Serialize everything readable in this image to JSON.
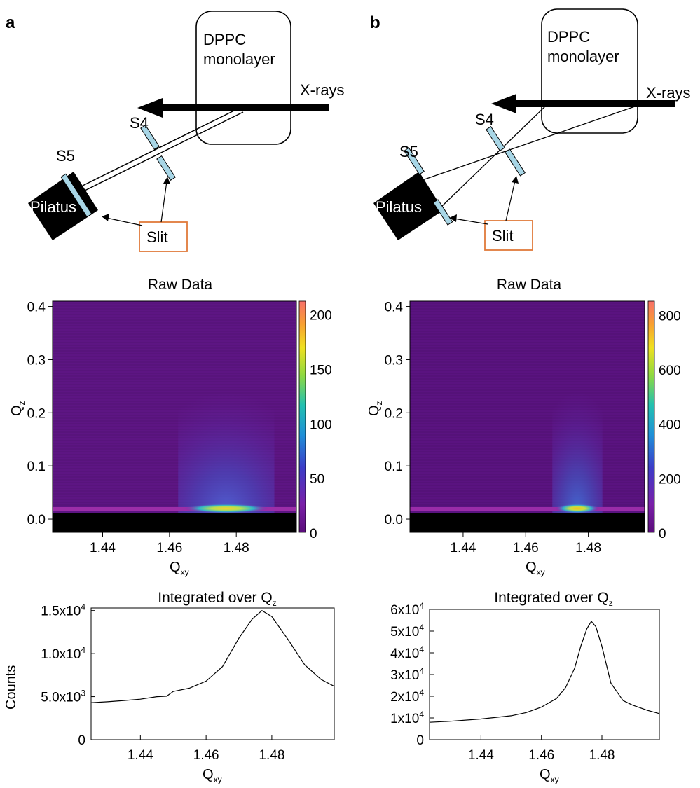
{
  "panels": [
    {
      "letter": "a",
      "schematic": {
        "monolayer_line1": "DPPC",
        "monolayer_line2": "monolayer",
        "beam": "X-rays",
        "slit_s4": "S4",
        "slit_s5": "S5",
        "detector": "Pilatus",
        "slit_box": "Slit"
      },
      "heatmap": {
        "title": "Raw Data",
        "xlabel": "Q",
        "xlabel_sub": "xy",
        "ylabel": "Q",
        "ylabel_sub": "z",
        "xlim": [
          1.425,
          1.498
        ],
        "ylim": [
          -0.025,
          0.41
        ],
        "xticks": [
          "1.44",
          "1.46",
          "1.48"
        ],
        "xtick_values": [
          1.44,
          1.46,
          1.48
        ],
        "yticks": [
          "0.0",
          "0.1",
          "0.2",
          "0.3",
          "0.4"
        ],
        "ytick_values": [
          0.0,
          0.1,
          0.2,
          0.3,
          0.4
        ],
        "colorbar_ticks": [
          "0",
          "50",
          "100",
          "150",
          "200"
        ],
        "colorbar_values": [
          0,
          50,
          100,
          150,
          200
        ],
        "colorbar_range": [
          0,
          212
        ],
        "peak_center": 1.477,
        "peak_width": 0.009
      },
      "profile": {
        "title": "Integrated over Q",
        "title_sub": "z",
        "xlabel": "Q",
        "xlabel_sub": "xy",
        "ylabel": "Counts",
        "xlim": [
          1.425,
          1.499
        ],
        "ylim": [
          0,
          15300
        ],
        "xticks": [
          "1.44",
          "1.46",
          "1.48"
        ],
        "xtick_values": [
          1.44,
          1.46,
          1.48
        ],
        "yticks": [
          {
            "value": 0,
            "mantissa": "0",
            "exp": ""
          },
          {
            "value": 5000,
            "mantissa": "5.0x10",
            "exp": "3"
          },
          {
            "value": 10000,
            "mantissa": "1.0x10",
            "exp": "4"
          },
          {
            "value": 15000,
            "mantissa": "1.5x10",
            "exp": "4"
          }
        ]
      }
    },
    {
      "letter": "b",
      "schematic": {
        "monolayer_line1": "DPPC",
        "monolayer_line2": "monolayer",
        "beam": "X-rays",
        "slit_s4": "S4",
        "slit_s5": "S5",
        "detector": "Pilatus",
        "slit_box": "Slit"
      },
      "heatmap": {
        "title": "Raw Data",
        "xlabel": "Q",
        "xlabel_sub": "xy",
        "ylabel": "Q",
        "ylabel_sub": "z",
        "xlim": [
          1.423,
          1.498
        ],
        "ylim": [
          -0.025,
          0.41
        ],
        "xticks": [
          "1.44",
          "1.46",
          "1.48"
        ],
        "xtick_values": [
          1.44,
          1.46,
          1.48
        ],
        "yticks": [
          "0.0",
          "0.1",
          "0.2",
          "0.3",
          "0.4"
        ],
        "ytick_values": [
          0.0,
          0.1,
          0.2,
          0.3,
          0.4
        ],
        "colorbar_ticks": [
          "0",
          "200",
          "400",
          "600",
          "800"
        ],
        "colorbar_values": [
          0,
          200,
          400,
          600,
          800
        ],
        "colorbar_range": [
          0,
          850
        ],
        "peak_center": 1.4765,
        "peak_width": 0.005
      },
      "profile": {
        "title": "Integrated over Q",
        "title_sub": "z",
        "xlabel": "Q",
        "xlabel_sub": "xy",
        "ylabel": "",
        "xlim": [
          1.423,
          1.499
        ],
        "ylim": [
          0,
          60000
        ],
        "xticks": [
          "1.44",
          "1.46",
          "1.48"
        ],
        "xtick_values": [
          1.44,
          1.46,
          1.48
        ],
        "yticks": [
          {
            "value": 0,
            "mantissa": "0",
            "exp": ""
          },
          {
            "value": 10000,
            "mantissa": "1x10",
            "exp": "4"
          },
          {
            "value": 20000,
            "mantissa": "2x10",
            "exp": "4"
          },
          {
            "value": 30000,
            "mantissa": "3x10",
            "exp": "4"
          },
          {
            "value": 40000,
            "mantissa": "4x10",
            "exp": "4"
          },
          {
            "value": 50000,
            "mantissa": "5x10",
            "exp": "4"
          },
          {
            "value": 60000,
            "mantissa": "6x10",
            "exp": "4"
          }
        ]
      }
    }
  ],
  "chart_data": [
    {
      "type": "heatmap",
      "title": "Raw Data",
      "xlabel": "Qxy",
      "ylabel": "Qz",
      "xlim": [
        1.425,
        1.498
      ],
      "ylim": [
        -0.025,
        0.41
      ],
      "colorbar": [
        0,
        212
      ],
      "peak": {
        "Qxy": 1.477,
        "Qz": 0.02,
        "max": 212
      }
    },
    {
      "type": "line",
      "title": "Integrated over Qz",
      "xlabel": "Qxy",
      "ylabel": "Counts",
      "xlim": [
        1.425,
        1.499
      ],
      "ylim": [
        0,
        15300
      ],
      "x": [
        1.425,
        1.43,
        1.435,
        1.44,
        1.445,
        1.448,
        1.45,
        1.455,
        1.46,
        1.465,
        1.47,
        1.474,
        1.477,
        1.48,
        1.485,
        1.49,
        1.495,
        1.499
      ],
      "y": [
        4300,
        4400,
        4550,
        4700,
        5000,
        5050,
        5600,
        6000,
        6800,
        8500,
        11800,
        14000,
        15000,
        14300,
        11600,
        8700,
        7000,
        6200
      ]
    },
    {
      "type": "heatmap",
      "title": "Raw Data",
      "xlabel": "Qxy",
      "ylabel": "Qz",
      "xlim": [
        1.423,
        1.498
      ],
      "ylim": [
        -0.025,
        0.41
      ],
      "colorbar": [
        0,
        850
      ],
      "peak": {
        "Qxy": 1.4765,
        "Qz": 0.02,
        "max": 850
      }
    },
    {
      "type": "line",
      "title": "Integrated over Qz",
      "xlabel": "Qxy",
      "xlim": [
        1.423,
        1.499
      ],
      "ylim": [
        0,
        60000
      ],
      "x": [
        1.423,
        1.43,
        1.44,
        1.45,
        1.455,
        1.46,
        1.465,
        1.468,
        1.471,
        1.473,
        1.475,
        1.4765,
        1.478,
        1.48,
        1.483,
        1.487,
        1.49,
        1.495,
        1.499
      ],
      "y": [
        8000,
        8500,
        9500,
        11000,
        12500,
        15000,
        19000,
        24000,
        33000,
        43000,
        51000,
        54500,
        52000,
        43000,
        26000,
        18000,
        16000,
        13500,
        12000
      ]
    }
  ]
}
